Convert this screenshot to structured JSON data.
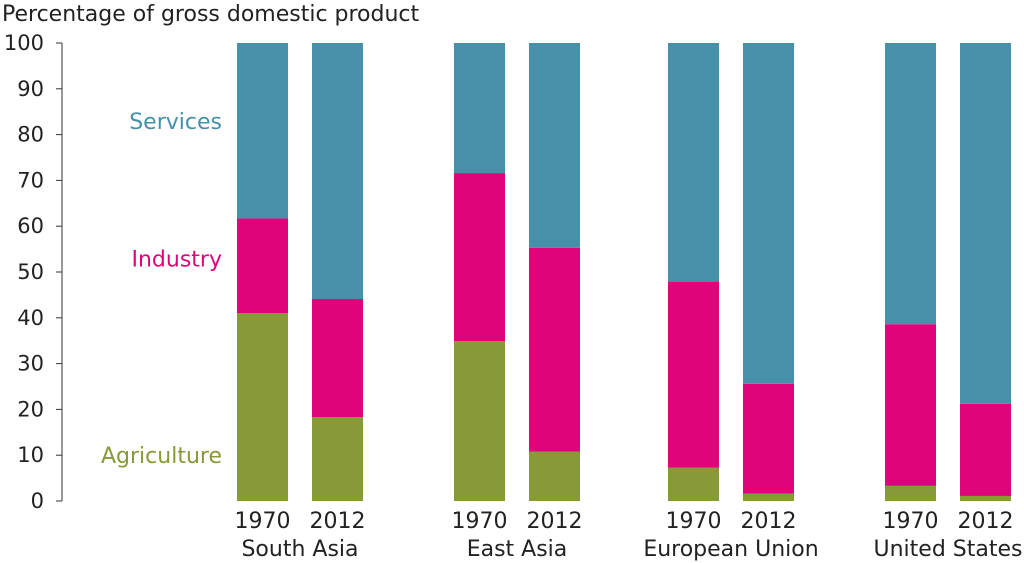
{
  "chart_data": {
    "type": "bar",
    "stacked": true,
    "ylabel": "Percentage of gross domestic product",
    "ylim": [
      0,
      100
    ],
    "yticks": [
      "0",
      "10",
      "20",
      "30",
      "40",
      "50",
      "60",
      "70",
      "80",
      "90",
      "100"
    ],
    "groups": [
      {
        "name": "South Asia",
        "bars": [
          {
            "year": "1970",
            "agriculture": 41,
            "industry": 20.7,
            "services": 38.3
          },
          {
            "year": "2012",
            "agriculture": 18.3,
            "industry": 25.8,
            "services": 55.9
          }
        ]
      },
      {
        "name": "East Asia",
        "bars": [
          {
            "year": "1970",
            "agriculture": 34.9,
            "industry": 36.7,
            "services": 28.4
          },
          {
            "year": "2012",
            "agriculture": 10.8,
            "industry": 44.5,
            "services": 44.7
          }
        ]
      },
      {
        "name": "European Union",
        "bars": [
          {
            "year": "1970",
            "agriculture": 7.3,
            "industry": 40.6,
            "services": 52.1
          },
          {
            "year": "2012",
            "agriculture": 1.6,
            "industry": 24,
            "services": 74.4
          }
        ]
      },
      {
        "name": "United States",
        "bars": [
          {
            "year": "1970",
            "agriculture": 3.3,
            "industry": 35.3,
            "services": 61.4
          },
          {
            "year": "2012",
            "agriculture": 1.1,
            "industry": 20.1,
            "services": 78.8
          }
        ]
      }
    ],
    "series": [
      {
        "key": "agriculture",
        "name": "Agriculture",
        "color": "#869a38",
        "label_y": 10
      },
      {
        "key": "industry",
        "name": "Industry",
        "color": "#e0047b",
        "label_y": 53
      },
      {
        "key": "services",
        "name": "Services",
        "color": "#4690aa",
        "label_y": 83
      }
    ],
    "grid": false,
    "legend": "inline-left"
  }
}
